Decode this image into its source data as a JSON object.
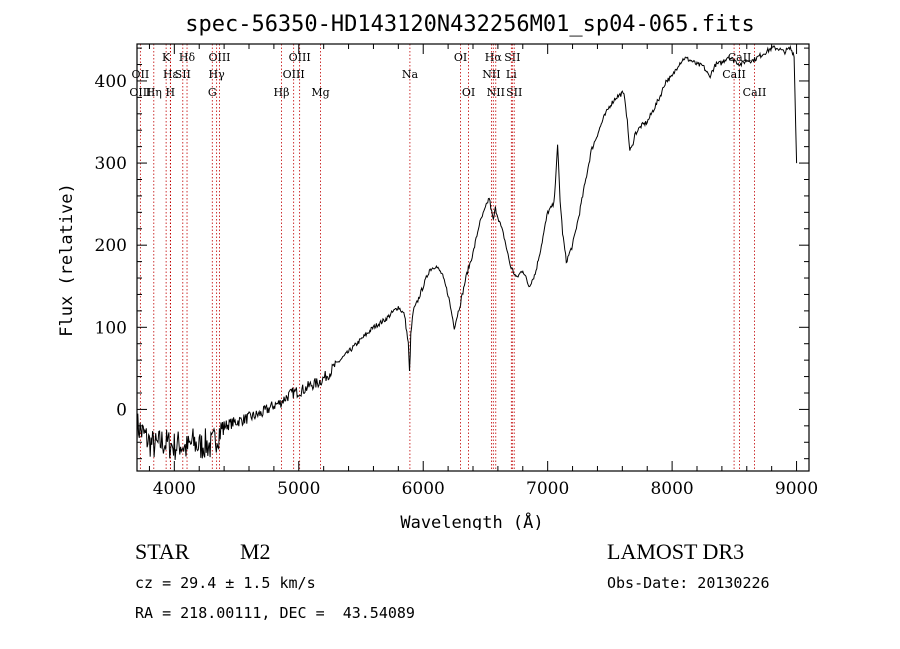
{
  "chart_data": {
    "type": "line",
    "title": "spec-56350-HD143120N432256M01_sp04-065.fits",
    "xlabel": "Wavelength (Å)",
    "ylabel": "Flux (relative)",
    "xlim": [
      3700,
      9100
    ],
    "ylim": [
      -75,
      445
    ],
    "x_ticks": [
      4000,
      5000,
      6000,
      7000,
      8000,
      9000
    ],
    "x_tick_labels": [
      "4000",
      "5000",
      "6000",
      "7000",
      "8000",
      "9000"
    ],
    "y_ticks": [
      0,
      100,
      200,
      300,
      400
    ],
    "y_tick_labels": [
      "0",
      "100",
      "200",
      "300",
      "400"
    ],
    "line_color": "#000000",
    "marker_color": "#c00000",
    "series": [
      {
        "name": "spectrum",
        "x": [
          3700,
          3750,
          3800,
          3850,
          3900,
          3950,
          4000,
          4050,
          4100,
          4150,
          4200,
          4250,
          4300,
          4350,
          4400,
          4500,
          4600,
          4700,
          4800,
          4850,
          4900,
          4950,
          5000,
          5050,
          5100,
          5150,
          5200,
          5250,
          5300,
          5400,
          5500,
          5600,
          5700,
          5800,
          5850,
          5880,
          5890,
          5900,
          5920,
          5950,
          6000,
          6050,
          6100,
          6150,
          6200,
          6250,
          6300,
          6350,
          6400,
          6450,
          6500,
          6530,
          6550,
          6563,
          6580,
          6600,
          6650,
          6700,
          6750,
          6800,
          6850,
          6900,
          6950,
          7000,
          7050,
          7080,
          7100,
          7120,
          7150,
          7200,
          7250,
          7300,
          7350,
          7400,
          7450,
          7500,
          7550,
          7600,
          7620,
          7640,
          7660,
          7680,
          7700,
          7750,
          7800,
          7850,
          7900,
          7950,
          8000,
          8050,
          8100,
          8150,
          8200,
          8250,
          8300,
          8350,
          8400,
          8450,
          8500,
          8550,
          8600,
          8650,
          8700,
          8750,
          8800,
          8850,
          8900,
          8950,
          8980,
          9000
        ],
        "y": [
          -20,
          -30,
          -40,
          -45,
          -40,
          -42,
          -45,
          -42,
          -48,
          -40,
          -45,
          -42,
          -45,
          -30,
          -20,
          -15,
          -10,
          -5,
          5,
          8,
          15,
          20,
          22,
          25,
          30,
          32,
          38,
          45,
          55,
          70,
          85,
          100,
          110,
          125,
          115,
          80,
          45,
          90,
          120,
          130,
          150,
          170,
          175,
          165,
          140,
          100,
          130,
          165,
          190,
          225,
          245,
          258,
          240,
          230,
          245,
          235,
          210,
          175,
          160,
          170,
          150,
          165,
          200,
          240,
          250,
          320,
          255,
          215,
          180,
          200,
          235,
          275,
          315,
          335,
          355,
          370,
          380,
          385,
          380,
          350,
          315,
          320,
          335,
          345,
          350,
          365,
          380,
          400,
          405,
          420,
          428,
          425,
          420,
          418,
          405,
          420,
          422,
          430,
          425,
          420,
          425,
          425,
          430,
          435,
          440,
          440,
          435,
          440,
          432,
          300
        ]
      }
    ],
    "line_markers": [
      {
        "label": "Hδ",
        "x": 4102,
        "row": 1
      },
      {
        "label": "K",
        "x": 3934,
        "row": 1
      },
      {
        "label": "Hε",
        "x": 3970,
        "row": 2
      },
      {
        "label": "OII",
        "x": 3727,
        "row": 2
      },
      {
        "label": "SII",
        "x": 4068,
        "row": 2
      },
      {
        "label": "OIII",
        "x": 3727,
        "row": 3
      },
      {
        "label": "Hη",
        "x": 3835,
        "row": 3
      },
      {
        "label": "H",
        "x": 3968,
        "row": 3
      },
      {
        "label": "OIII",
        "x": 4363,
        "row": 1
      },
      {
        "label": "Hγ",
        "x": 4340,
        "row": 2
      },
      {
        "label": "G",
        "x": 4305,
        "row": 3
      },
      {
        "label": "Hβ",
        "x": 4861,
        "row": 3
      },
      {
        "label": "OIII",
        "x": 5007,
        "row": 1
      },
      {
        "label": "OIII",
        "x": 4959,
        "row": 2
      },
      {
        "label": "Mg",
        "x": 5175,
        "row": 3
      },
      {
        "label": "Na",
        "x": 5893,
        "row": 2
      },
      {
        "label": "OI",
        "x": 6300,
        "row": 1
      },
      {
        "label": "OI",
        "x": 6364,
        "row": 3
      },
      {
        "label": "Hα",
        "x": 6563,
        "row": 1
      },
      {
        "label": "SII",
        "x": 6716,
        "row": 1
      },
      {
        "label": "NII",
        "x": 6548,
        "row": 2
      },
      {
        "label": "Li",
        "x": 6708,
        "row": 2
      },
      {
        "label": "NII",
        "x": 6583,
        "row": 3
      },
      {
        "label": "SII",
        "x": 6731,
        "row": 3
      },
      {
        "label": "CaII",
        "x": 8542,
        "row": 1
      },
      {
        "label": "CaII",
        "x": 8498,
        "row": 2
      },
      {
        "label": "CaII",
        "x": 8662,
        "row": 3
      }
    ]
  },
  "info": {
    "class": "STAR",
    "subclass": "M2",
    "survey": "LAMOST DR3",
    "cz": "cz = 29.4 ± 1.5 km/s",
    "obs_date": "Obs-Date: 20130226",
    "coords": "RA = 218.00111, DEC =  43.54089"
  }
}
